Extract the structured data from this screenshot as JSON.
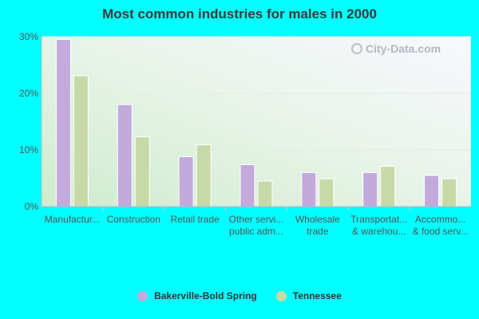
{
  "chart_data": {
    "type": "bar",
    "title": "Most common industries for males in 2000",
    "categories": [
      [
        "Manufactur..."
      ],
      [
        "Construction"
      ],
      [
        "Retail trade"
      ],
      [
        "Other servi...",
        "public adm..."
      ],
      [
        "Wholesale",
        "trade"
      ],
      [
        "Transportat...",
        "& warehou..."
      ],
      [
        "Accommo...",
        "& food serv..."
      ]
    ],
    "series": [
      {
        "name": "Bakerville-Bold Spring",
        "color": "#c2aadc",
        "values": [
          29.5,
          18.0,
          8.8,
          7.4,
          6.0,
          6.0,
          5.5
        ]
      },
      {
        "name": "Tennessee",
        "color": "#c8d9a8",
        "values": [
          23.1,
          12.3,
          10.9,
          4.5,
          4.9,
          7.1,
          4.9
        ]
      }
    ],
    "yticks": [
      "0%",
      "10%",
      "20%",
      "30%"
    ],
    "ylim": [
      0,
      30
    ],
    "grid": true,
    "legend": "bottom",
    "watermark": "City-Data.com"
  }
}
